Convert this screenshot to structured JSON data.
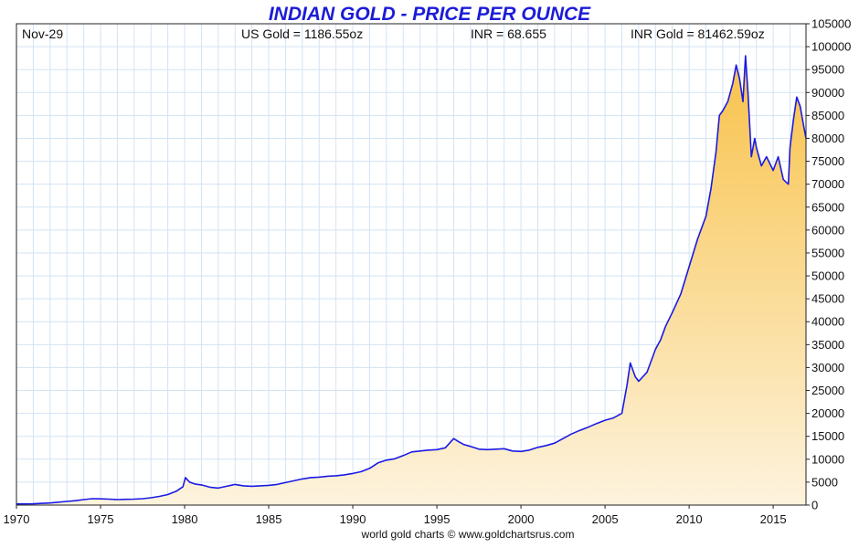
{
  "chart_data": {
    "type": "area",
    "title": "INDIAN GOLD - PRICE PER OUNCE",
    "header": {
      "date": "Nov-29",
      "us_gold": "US Gold = 1186.55oz",
      "inr": "INR = 68.655",
      "inr_gold": "INR Gold = 81462.59oz"
    },
    "credit": "world gold charts © www.goldchartsrus.com",
    "xlim": [
      1970,
      2016.95
    ],
    "ylim": [
      0,
      105000
    ],
    "x_ticks": [
      "1970",
      "1975",
      "1980",
      "1985",
      "1990",
      "1995",
      "2000",
      "2005",
      "2010",
      "2015"
    ],
    "y_ticks": [
      "0",
      "5000",
      "10000",
      "15000",
      "20000",
      "25000",
      "30000",
      "35000",
      "40000",
      "45000",
      "50000",
      "55000",
      "60000",
      "65000",
      "70000",
      "75000",
      "80000",
      "85000",
      "90000",
      "95000",
      "100000",
      "105000"
    ],
    "grid": true,
    "legend": "none",
    "colors": {
      "line": "#1a1ae6",
      "fill_top": "#f8c24a",
      "fill_bottom": "#fdf3dd",
      "grid": "#d3e3f3",
      "title": "#1b1bd8"
    },
    "series": [
      {
        "x": [
          1970,
          1971,
          1972,
          1973,
          1973.5,
          1974,
          1974.5,
          1975,
          1975.5,
          1976,
          1976.5,
          1977,
          1977.5,
          1978,
          1978.5,
          1979,
          1979.5,
          1979.9,
          1980.05,
          1980.3,
          1980.6,
          1981,
          1981.5,
          1982,
          1982.5,
          1983,
          1983.5,
          1984,
          1984.5,
          1985,
          1985.5,
          1986,
          1986.5,
          1987,
          1987.5,
          1988,
          1988.5,
          1989,
          1989.5,
          1990,
          1990.5,
          1991,
          1991.5,
          1992,
          1992.5,
          1993,
          1993.5,
          1994,
          1994.5,
          1995,
          1995.5,
          1996,
          1996.3,
          1996.6,
          1997,
          1997.5,
          1998,
          1998.5,
          1999,
          1999.5,
          2000,
          2000.5,
          2001,
          2001.5,
          2002,
          2002.5,
          2003,
          2003.5,
          2004,
          2004.5,
          2005,
          2005.5,
          2006,
          2006.3,
          2006.5,
          2006.8,
          2007,
          2007.5,
          2008,
          2008.3,
          2008.6,
          2009,
          2009.5,
          2010,
          2010.5,
          2011,
          2011.3,
          2011.6,
          2011.8,
          2012,
          2012.3,
          2012.6,
          2012.8,
          2013,
          2013.2,
          2013.35,
          2013.5,
          2013.7,
          2013.9,
          2014,
          2014.3,
          2014.6,
          2015,
          2015.3,
          2015.6,
          2015.9,
          2016,
          2016.2,
          2016.4,
          2016.6,
          2016.8,
          2016.95
        ],
        "y": [
          250,
          280,
          450,
          800,
          950,
          1200,
          1400,
          1350,
          1300,
          1200,
          1250,
          1300,
          1400,
          1600,
          1900,
          2300,
          3000,
          4000,
          6000,
          5000,
          4600,
          4400,
          3900,
          3700,
          4100,
          4500,
          4200,
          4100,
          4200,
          4300,
          4500,
          4900,
          5300,
          5700,
          6000,
          6100,
          6300,
          6400,
          6600,
          6900,
          7300,
          8000,
          9200,
          9800,
          10100,
          10800,
          11600,
          11800,
          12000,
          12100,
          12500,
          14500,
          13800,
          13200,
          12800,
          12200,
          12100,
          12200,
          12300,
          11800,
          11700,
          12000,
          12600,
          13000,
          13500,
          14500,
          15500,
          16300,
          17000,
          17800,
          18500,
          19000,
          20000,
          26000,
          31000,
          28000,
          27000,
          29000,
          34000,
          36000,
          39000,
          42000,
          46000,
          52000,
          58000,
          63000,
          69000,
          77000,
          85000,
          86000,
          88000,
          92000,
          96000,
          93000,
          88000,
          98000,
          90000,
          76000,
          80000,
          78000,
          74000,
          76000,
          73000,
          76000,
          71000,
          70000,
          78000,
          84000,
          89000,
          87000,
          83000,
          80000
        ]
      }
    ]
  }
}
